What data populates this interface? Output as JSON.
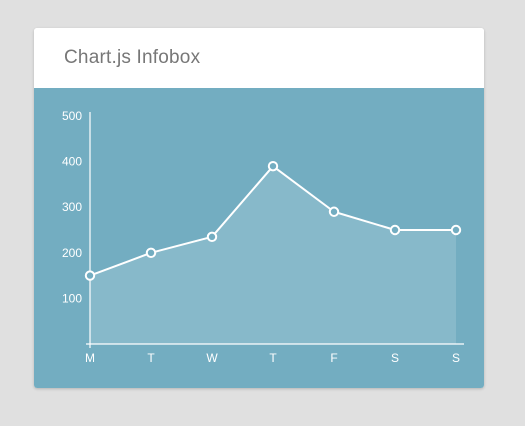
{
  "card": {
    "title": "Chart.js Infobox"
  },
  "colors": {
    "page_background": "#e0e0e0",
    "card_background": "#ffffff",
    "chart_background": "#73adc1",
    "line": "#ffffff",
    "fill": "rgba(255,255,255,0.15)",
    "title_text": "#777777"
  },
  "chart_data": {
    "type": "line",
    "categories": [
      "M",
      "T",
      "W",
      "T",
      "F",
      "S",
      "S"
    ],
    "series": [
      {
        "values": [
          150,
          200,
          235,
          390,
          290,
          250,
          250
        ]
      }
    ],
    "y_ticks": [
      "100",
      "200",
      "300",
      "400",
      "500"
    ],
    "ylim": [
      0,
      500
    ],
    "grid": false,
    "area_fill": true,
    "point_markers": "hollow-circle"
  }
}
